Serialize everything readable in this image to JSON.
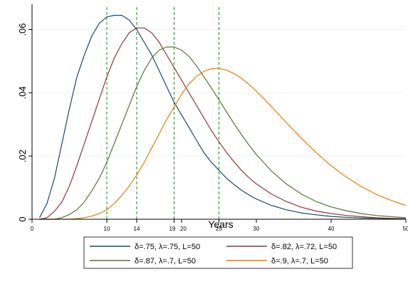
{
  "chart_data": {
    "type": "line",
    "xlabel": "Years",
    "ylabel": "",
    "xlim": [
      0,
      50
    ],
    "ylim": [
      0,
      0.068
    ],
    "x_ticks": [
      0,
      10,
      14,
      19,
      20,
      25,
      30,
      40,
      50
    ],
    "x_tick_labels": [
      "0",
      "10",
      "14",
      "19",
      "20",
      "25",
      "30",
      "40",
      "50"
    ],
    "y_ticks": [
      0,
      0.02,
      0.04,
      0.06
    ],
    "y_tick_labels": [
      "0",
      ".02",
      ".04",
      ".06"
    ],
    "grid": true,
    "legend_placement": "bottom",
    "reference_lines": [
      {
        "x": 10,
        "color": "#009900",
        "style": "dashed"
      },
      {
        "x": 14,
        "color": "#009900",
        "style": "dashed"
      },
      {
        "x": 19,
        "color": "#009900",
        "style": "dashed"
      },
      {
        "x": 25,
        "color": "#009900",
        "style": "dashed"
      }
    ],
    "series": [
      {
        "name": "δ=.75, λ=.75, L=50",
        "color": "#1a476f",
        "x": [
          1,
          2,
          3,
          4,
          5,
          6,
          7,
          8,
          9,
          10,
          11,
          12,
          13,
          14,
          15,
          16,
          17,
          18,
          19,
          20,
          21,
          22,
          23,
          24,
          25,
          26,
          27,
          28,
          29,
          30,
          32,
          34,
          36,
          38,
          40,
          42,
          44,
          46,
          48,
          50
        ],
        "y": [
          0.0005,
          0.005,
          0.013,
          0.024,
          0.035,
          0.045,
          0.052,
          0.058,
          0.062,
          0.064,
          0.0645,
          0.0645,
          0.063,
          0.06,
          0.056,
          0.052,
          0.047,
          0.042,
          0.037,
          0.033,
          0.029,
          0.025,
          0.021,
          0.018,
          0.0155,
          0.013,
          0.011,
          0.0092,
          0.0077,
          0.0064,
          0.0044,
          0.003,
          0.002,
          0.0014,
          0.0009,
          0.0006,
          0.0004,
          0.0003,
          0.0002,
          0.0001
        ]
      },
      {
        "name": "δ=.82, λ=.72, L=50",
        "color": "#90353b",
        "x": [
          1,
          2,
          3,
          4,
          5,
          6,
          7,
          8,
          9,
          10,
          11,
          12,
          13,
          14,
          15,
          16,
          17,
          18,
          19,
          20,
          21,
          22,
          23,
          24,
          25,
          26,
          27,
          28,
          29,
          30,
          32,
          34,
          36,
          38,
          40,
          42,
          44,
          46,
          48,
          50
        ],
        "y": [
          0,
          0.0005,
          0.0025,
          0.0055,
          0.0105,
          0.017,
          0.024,
          0.031,
          0.038,
          0.045,
          0.051,
          0.0555,
          0.059,
          0.0605,
          0.0605,
          0.059,
          0.056,
          0.052,
          0.048,
          0.044,
          0.04,
          0.036,
          0.032,
          0.028,
          0.0245,
          0.0212,
          0.0182,
          0.0155,
          0.0132,
          0.0112,
          0.008,
          0.0056,
          0.0038,
          0.0026,
          0.0018,
          0.0012,
          0.0008,
          0.0005,
          0.0003,
          0.0002
        ]
      },
      {
        "name": "δ=.87, λ=.7, L=50",
        "color": "#55752f",
        "x": [
          1,
          2,
          3,
          4,
          5,
          6,
          7,
          8,
          9,
          10,
          11,
          12,
          13,
          14,
          15,
          16,
          17,
          18,
          19,
          20,
          21,
          22,
          23,
          24,
          25,
          26,
          27,
          28,
          29,
          30,
          32,
          34,
          36,
          38,
          40,
          42,
          44,
          46,
          48,
          50
        ],
        "y": [
          0,
          0,
          0,
          0.0005,
          0.0015,
          0.003,
          0.0055,
          0.009,
          0.013,
          0.018,
          0.024,
          0.03,
          0.036,
          0.042,
          0.047,
          0.051,
          0.0535,
          0.0545,
          0.0545,
          0.0535,
          0.0515,
          0.0485,
          0.045,
          0.0415,
          0.0378,
          0.034,
          0.0303,
          0.0268,
          0.0235,
          0.0205,
          0.0153,
          0.0112,
          0.008,
          0.0056,
          0.0039,
          0.0027,
          0.0018,
          0.0012,
          0.0008,
          0.0005
        ]
      },
      {
        "name": "δ=.9, λ=.7, L=50",
        "color": "#e37e00",
        "x": [
          1,
          2,
          3,
          4,
          5,
          6,
          7,
          8,
          9,
          10,
          11,
          12,
          13,
          14,
          15,
          16,
          17,
          18,
          19,
          20,
          21,
          22,
          23,
          24,
          25,
          26,
          27,
          28,
          29,
          30,
          32,
          34,
          36,
          38,
          40,
          42,
          44,
          46,
          48,
          50
        ],
        "y": [
          0,
          0,
          0,
          0,
          0,
          0.0002,
          0.0005,
          0.001,
          0.0018,
          0.003,
          0.005,
          0.0075,
          0.0105,
          0.014,
          0.018,
          0.0225,
          0.027,
          0.0315,
          0.0355,
          0.0395,
          0.0428,
          0.0452,
          0.0468,
          0.0476,
          0.0477,
          0.0472,
          0.0461,
          0.0446,
          0.0427,
          0.0405,
          0.0357,
          0.0306,
          0.0257,
          0.0211,
          0.0169,
          0.0134,
          0.0104,
          0.0079,
          0.006,
          0.0044
        ]
      }
    ]
  }
}
